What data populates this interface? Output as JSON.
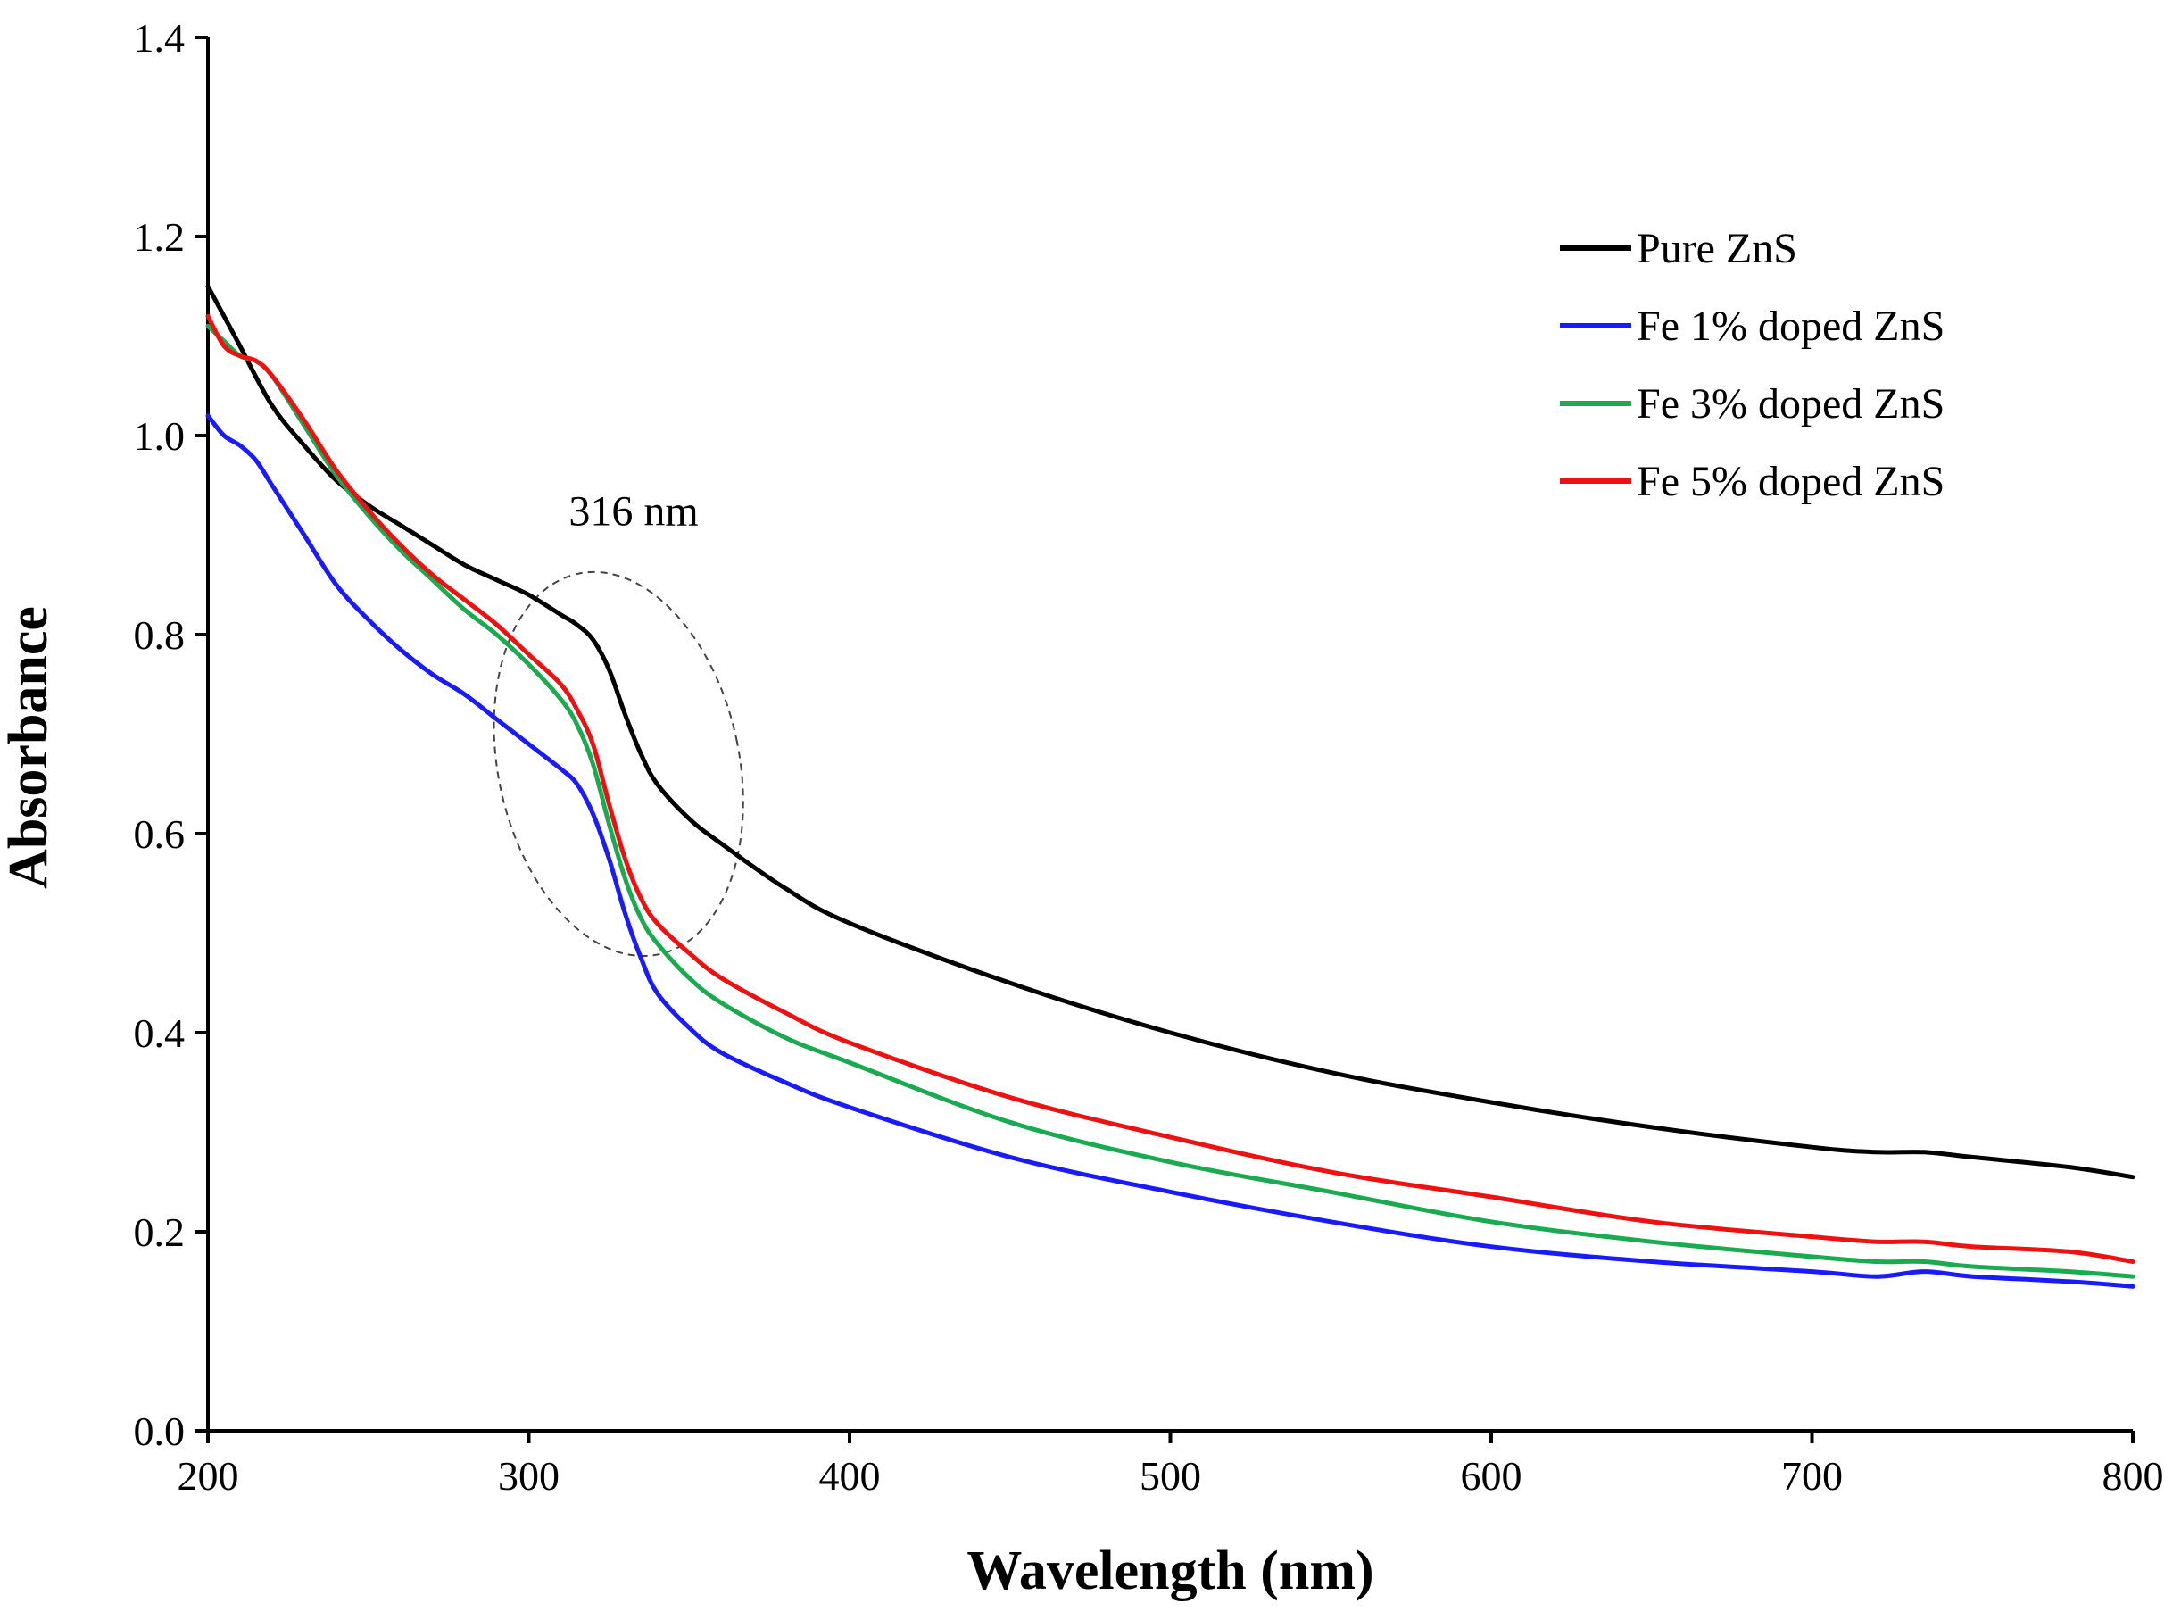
{
  "chart_data": {
    "type": "line",
    "title": "",
    "xlabel": "Wavelength (nm)",
    "ylabel": "Absorbance",
    "xlim": [
      200,
      800
    ],
    "ylim": [
      0,
      1.4
    ],
    "xticks": [
      200,
      300,
      400,
      500,
      600,
      700,
      800
    ],
    "yticks": [
      0.0,
      0.2,
      0.4,
      0.6,
      0.8,
      1.0,
      1.2,
      1.4
    ],
    "ytick_labels": [
      "0.0",
      "0.2",
      "0.4",
      "0.6",
      "0.8",
      "1.0",
      "1.2",
      "1.4"
    ],
    "grid": false,
    "legend_position": "top-right",
    "series": [
      {
        "name": "Pure ZnS",
        "color": "#000000",
        "x": [
          200,
          205,
          210,
          220,
          230,
          240,
          250,
          260,
          270,
          280,
          290,
          300,
          310,
          315,
          320,
          325,
          330,
          335,
          340,
          350,
          360,
          380,
          400,
          450,
          500,
          550,
          600,
          650,
          700,
          720,
          735,
          750,
          780,
          800
        ],
        "y": [
          1.15,
          1.12,
          1.09,
          1.03,
          0.99,
          0.955,
          0.93,
          0.91,
          0.89,
          0.87,
          0.855,
          0.84,
          0.82,
          0.81,
          0.795,
          0.765,
          0.72,
          0.68,
          0.65,
          0.615,
          0.59,
          0.545,
          0.51,
          0.45,
          0.4,
          0.36,
          0.33,
          0.305,
          0.285,
          0.28,
          0.28,
          0.275,
          0.265,
          0.255
        ]
      },
      {
        "name": "Fe 1% doped ZnS",
        "color": "#1a1aff",
        "x": [
          200,
          205,
          210,
          215,
          220,
          230,
          240,
          250,
          260,
          270,
          280,
          290,
          300,
          310,
          315,
          320,
          325,
          330,
          335,
          340,
          350,
          360,
          380,
          400,
          450,
          500,
          550,
          600,
          650,
          700,
          720,
          735,
          750,
          780,
          800
        ],
        "y": [
          1.02,
          1.0,
          0.99,
          0.975,
          0.95,
          0.9,
          0.85,
          0.815,
          0.785,
          0.76,
          0.74,
          0.715,
          0.69,
          0.665,
          0.65,
          0.62,
          0.575,
          0.52,
          0.475,
          0.44,
          0.405,
          0.38,
          0.35,
          0.325,
          0.275,
          0.24,
          0.21,
          0.185,
          0.17,
          0.16,
          0.155,
          0.16,
          0.155,
          0.15,
          0.145
        ]
      },
      {
        "name": "Fe 3% doped ZnS",
        "color": "#1aaa50",
        "x": [
          200,
          205,
          210,
          215,
          220,
          230,
          240,
          250,
          260,
          270,
          280,
          290,
          300,
          310,
          315,
          320,
          325,
          330,
          335,
          340,
          350,
          360,
          380,
          400,
          450,
          500,
          550,
          600,
          650,
          700,
          720,
          735,
          750,
          780,
          800
        ],
        "y": [
          1.11,
          1.095,
          1.08,
          1.075,
          1.06,
          1.01,
          0.96,
          0.92,
          0.885,
          0.855,
          0.825,
          0.8,
          0.77,
          0.735,
          0.71,
          0.67,
          0.61,
          0.555,
          0.515,
          0.49,
          0.455,
          0.43,
          0.395,
          0.37,
          0.31,
          0.27,
          0.24,
          0.21,
          0.19,
          0.175,
          0.17,
          0.17,
          0.165,
          0.16,
          0.155
        ]
      },
      {
        "name": "Fe 5% doped ZnS",
        "color": "#ee1111",
        "x": [
          200,
          205,
          210,
          215,
          220,
          230,
          240,
          250,
          260,
          270,
          280,
          290,
          300,
          310,
          315,
          320,
          325,
          330,
          335,
          340,
          350,
          360,
          380,
          400,
          450,
          500,
          550,
          600,
          650,
          700,
          720,
          735,
          750,
          780,
          800
        ],
        "y": [
          1.12,
          1.09,
          1.08,
          1.075,
          1.06,
          1.015,
          0.965,
          0.925,
          0.89,
          0.86,
          0.835,
          0.81,
          0.78,
          0.75,
          0.725,
          0.69,
          0.63,
          0.575,
          0.535,
          0.51,
          0.48,
          0.455,
          0.42,
          0.39,
          0.335,
          0.295,
          0.26,
          0.235,
          0.21,
          0.195,
          0.19,
          0.19,
          0.185,
          0.18,
          0.17
        ]
      }
    ],
    "annotations": [
      {
        "text": "316 nm",
        "x": 316,
        "y": 0.82,
        "shape": "dashed-ellipse"
      }
    ]
  }
}
